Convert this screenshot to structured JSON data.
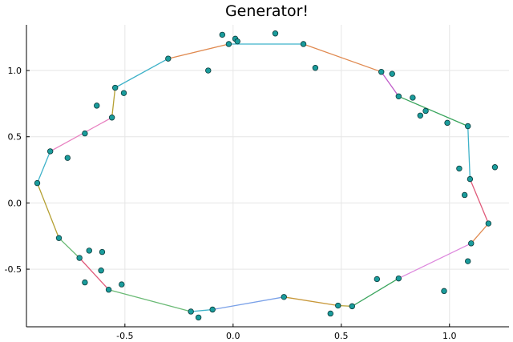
{
  "chart_data": {
    "type": "scatter",
    "title": "Generator!",
    "xlabel": "",
    "ylabel": "",
    "xlim": [
      -0.955,
      1.275
    ],
    "ylim": [
      -0.935,
      1.345
    ],
    "xticks": [
      -0.5,
      0.0,
      0.5,
      1.0
    ],
    "xtick_labels": [
      "-0.5",
      "0.0",
      "0.5",
      "1.0"
    ],
    "yticks": [
      -0.5,
      0.0,
      0.5,
      1.0
    ],
    "ytick_labels": [
      "-0.5",
      "0.0",
      "0.5",
      "1.0"
    ],
    "grid": true,
    "legend": "none",
    "marker_color": "#1a9c9c",
    "marker_edge_color": "#0b3b3b",
    "points": [
      [
        -0.05,
        1.27
      ],
      [
        0.01,
        1.24
      ],
      [
        0.02,
        1.22
      ],
      [
        0.195,
        1.28
      ],
      [
        -0.02,
        1.2
      ],
      [
        0.325,
        1.2
      ],
      [
        0.38,
        1.02
      ],
      [
        -0.3,
        1.09
      ],
      [
        -0.115,
        1.0
      ],
      [
        0.685,
        0.99
      ],
      [
        0.735,
        0.975
      ],
      [
        -0.545,
        0.87
      ],
      [
        -0.505,
        0.83
      ],
      [
        0.765,
        0.805
      ],
      [
        0.83,
        0.795
      ],
      [
        -0.63,
        0.735
      ],
      [
        0.89,
        0.695
      ],
      [
        0.865,
        0.66
      ],
      [
        -0.56,
        0.645
      ],
      [
        0.99,
        0.605
      ],
      [
        1.085,
        0.58
      ],
      [
        -0.685,
        0.525
      ],
      [
        -0.845,
        0.39
      ],
      [
        -0.765,
        0.34
      ],
      [
        1.045,
        0.26
      ],
      [
        1.21,
        0.27
      ],
      [
        1.095,
        0.18
      ],
      [
        -0.905,
        0.15
      ],
      [
        1.07,
        0.06
      ],
      [
        1.18,
        -0.155
      ],
      [
        -0.805,
        -0.265
      ],
      [
        1.1,
        -0.305
      ],
      [
        -0.665,
        -0.36
      ],
      [
        -0.605,
        -0.37
      ],
      [
        -0.71,
        -0.415
      ],
      [
        1.085,
        -0.44
      ],
      [
        -0.61,
        -0.51
      ],
      [
        0.665,
        -0.575
      ],
      [
        0.765,
        -0.57
      ],
      [
        -0.685,
        -0.6
      ],
      [
        -0.515,
        -0.615
      ],
      [
        -0.575,
        -0.655
      ],
      [
        0.975,
        -0.665
      ],
      [
        0.235,
        -0.71
      ],
      [
        0.485,
        -0.775
      ],
      [
        0.55,
        -0.78
      ],
      [
        -0.095,
        -0.805
      ],
      [
        -0.195,
        -0.82
      ],
      [
        0.45,
        -0.835
      ],
      [
        -0.16,
        -0.865
      ]
    ],
    "series": [
      {
        "color": "#e0894f",
        "values": [
          [
            -0.3,
            1.09
          ],
          [
            -0.02,
            1.2
          ]
        ]
      },
      {
        "color": "#3fb2c9",
        "values": [
          [
            -0.02,
            1.2
          ],
          [
            0.325,
            1.2
          ]
        ]
      },
      {
        "color": "#e0894f",
        "values": [
          [
            0.325,
            1.2
          ],
          [
            0.685,
            0.99
          ]
        ]
      },
      {
        "color": "#c05cc9",
        "values": [
          [
            0.685,
            0.99
          ],
          [
            0.765,
            0.805
          ]
        ]
      },
      {
        "color": "#3aa55d",
        "values": [
          [
            0.765,
            0.805
          ],
          [
            1.085,
            0.58
          ]
        ]
      },
      {
        "color": "#3fb2c9",
        "values": [
          [
            1.085,
            0.58
          ],
          [
            1.095,
            0.18
          ]
        ]
      },
      {
        "color": "#e05a7a",
        "values": [
          [
            1.095,
            0.18
          ],
          [
            1.18,
            -0.155
          ]
        ]
      },
      {
        "color": "#e0894f",
        "values": [
          [
            1.18,
            -0.155
          ],
          [
            1.1,
            -0.305
          ]
        ]
      },
      {
        "color": "#dd88dd",
        "values": [
          [
            1.1,
            -0.305
          ],
          [
            0.765,
            -0.57
          ]
        ]
      },
      {
        "color": "#3aa55d",
        "values": [
          [
            0.765,
            -0.57
          ],
          [
            0.55,
            -0.78
          ]
        ]
      },
      {
        "color": "#b5a032",
        "values": [
          [
            0.55,
            -0.78
          ],
          [
            0.485,
            -0.775
          ]
        ]
      },
      {
        "color": "#c8983a",
        "values": [
          [
            0.485,
            -0.775
          ],
          [
            0.235,
            -0.71
          ]
        ]
      },
      {
        "color": "#7aa1e8",
        "values": [
          [
            0.235,
            -0.71
          ],
          [
            -0.095,
            -0.805
          ]
        ]
      },
      {
        "color": "#3fb2c9",
        "values": [
          [
            -0.095,
            -0.805
          ],
          [
            -0.195,
            -0.82
          ]
        ]
      },
      {
        "color": "#6aba75",
        "values": [
          [
            -0.195,
            -0.82
          ],
          [
            -0.575,
            -0.655
          ]
        ]
      },
      {
        "color": "#e05a7a",
        "values": [
          [
            -0.575,
            -0.655
          ],
          [
            -0.71,
            -0.415
          ]
        ]
      },
      {
        "color": "#6aba75",
        "values": [
          [
            -0.71,
            -0.415
          ],
          [
            -0.805,
            -0.265
          ]
        ]
      },
      {
        "color": "#b5a032",
        "values": [
          [
            -0.805,
            -0.265
          ],
          [
            -0.905,
            0.15
          ]
        ]
      },
      {
        "color": "#3fb2c9",
        "values": [
          [
            -0.905,
            0.15
          ],
          [
            -0.845,
            0.39
          ]
        ]
      },
      {
        "color": "#e880c0",
        "values": [
          [
            -0.845,
            0.39
          ],
          [
            -0.56,
            0.645
          ]
        ]
      },
      {
        "color": "#b5a032",
        "values": [
          [
            -0.56,
            0.645
          ],
          [
            -0.545,
            0.87
          ]
        ]
      },
      {
        "color": "#3fb2c9",
        "values": [
          [
            -0.545,
            0.87
          ],
          [
            -0.3,
            1.09
          ]
        ]
      }
    ]
  }
}
